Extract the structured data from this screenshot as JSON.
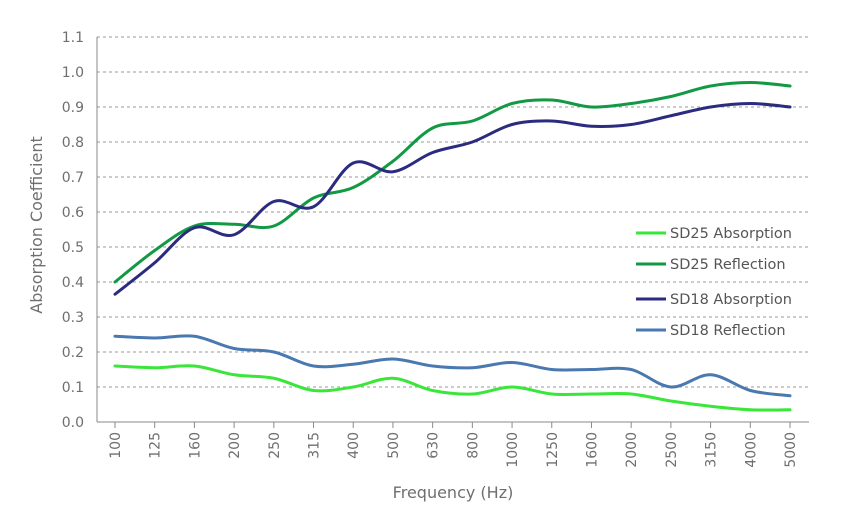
{
  "chart_data": {
    "type": "line",
    "title": "",
    "xlabel": "Frequency (Hz)",
    "ylabel": "Absorption Coefficient",
    "ylim": [
      0,
      1.1
    ],
    "grid": true,
    "legend_position": "right",
    "categories": [
      "100",
      "125",
      "160",
      "200",
      "250",
      "315",
      "400",
      "500",
      "630",
      "800",
      "1000",
      "1250",
      "1600",
      "2000",
      "2500",
      "3150",
      "4000",
      "5000"
    ],
    "y_ticks": [
      "0.0",
      "0.1",
      "0.2",
      "0.3",
      "0.4",
      "0.5",
      "0.6",
      "0.7",
      "0.8",
      "0.9",
      "1.0",
      "1.1"
    ],
    "series": [
      {
        "name": "SD25 Absorption",
        "color": "#39e639",
        "values": [
          0.16,
          0.155,
          0.16,
          0.135,
          0.125,
          0.09,
          0.1,
          0.125,
          0.09,
          0.08,
          0.1,
          0.08,
          0.08,
          0.08,
          0.06,
          0.045,
          0.035,
          0.035
        ]
      },
      {
        "name": "SD25 Reflection",
        "color": "#119944",
        "values": [
          0.4,
          0.49,
          0.56,
          0.565,
          0.56,
          0.64,
          0.67,
          0.745,
          0.84,
          0.86,
          0.91,
          0.92,
          0.9,
          0.91,
          0.93,
          0.96,
          0.97,
          0.96
        ]
      },
      {
        "name": "SD18 Absorption",
        "color": "#2b2b7f",
        "values": [
          0.365,
          0.455,
          0.555,
          0.535,
          0.63,
          0.615,
          0.74,
          0.715,
          0.77,
          0.8,
          0.85,
          0.86,
          0.845,
          0.85,
          0.875,
          0.9,
          0.91,
          0.9
        ]
      },
      {
        "name": "SD18 Reflection",
        "color": "#4a78b0",
        "values": [
          0.245,
          0.24,
          0.245,
          0.21,
          0.2,
          0.16,
          0.165,
          0.18,
          0.16,
          0.155,
          0.17,
          0.15,
          0.15,
          0.15,
          0.1,
          0.135,
          0.09,
          0.075
        ]
      }
    ]
  }
}
